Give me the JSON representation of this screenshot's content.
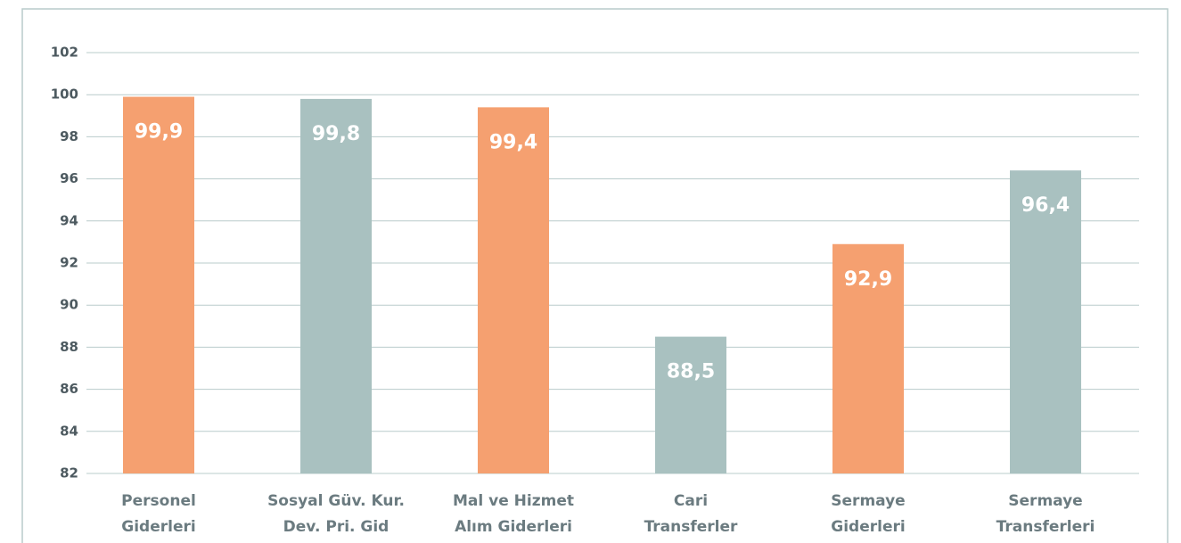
{
  "chart_data": {
    "type": "bar",
    "categories": [
      [
        "Personel",
        "Giderleri"
      ],
      [
        "Sosyal Güv. Kur.",
        "Dev. Pri. Gid"
      ],
      [
        "Mal ve Hizmet",
        "Alım Giderleri"
      ],
      [
        "Cari",
        "Transferler"
      ],
      [
        "Sermaye",
        "Giderleri"
      ],
      [
        "Sermaye",
        "Transferleri"
      ]
    ],
    "values": [
      99.9,
      99.8,
      99.4,
      88.5,
      92.9,
      96.4
    ],
    "value_labels": [
      "99,9",
      "99,8",
      "99,4",
      "88,5",
      "92,9",
      "96,4"
    ],
    "colors": [
      "#f5a070",
      "#a9c1c0",
      "#f5a070",
      "#a9c1c0",
      "#f5a070",
      "#a9c1c0"
    ],
    "ylim": [
      82,
      102
    ],
    "yticks": [
      82,
      84,
      86,
      88,
      90,
      92,
      94,
      96,
      98,
      100,
      102
    ],
    "grid": true
  }
}
